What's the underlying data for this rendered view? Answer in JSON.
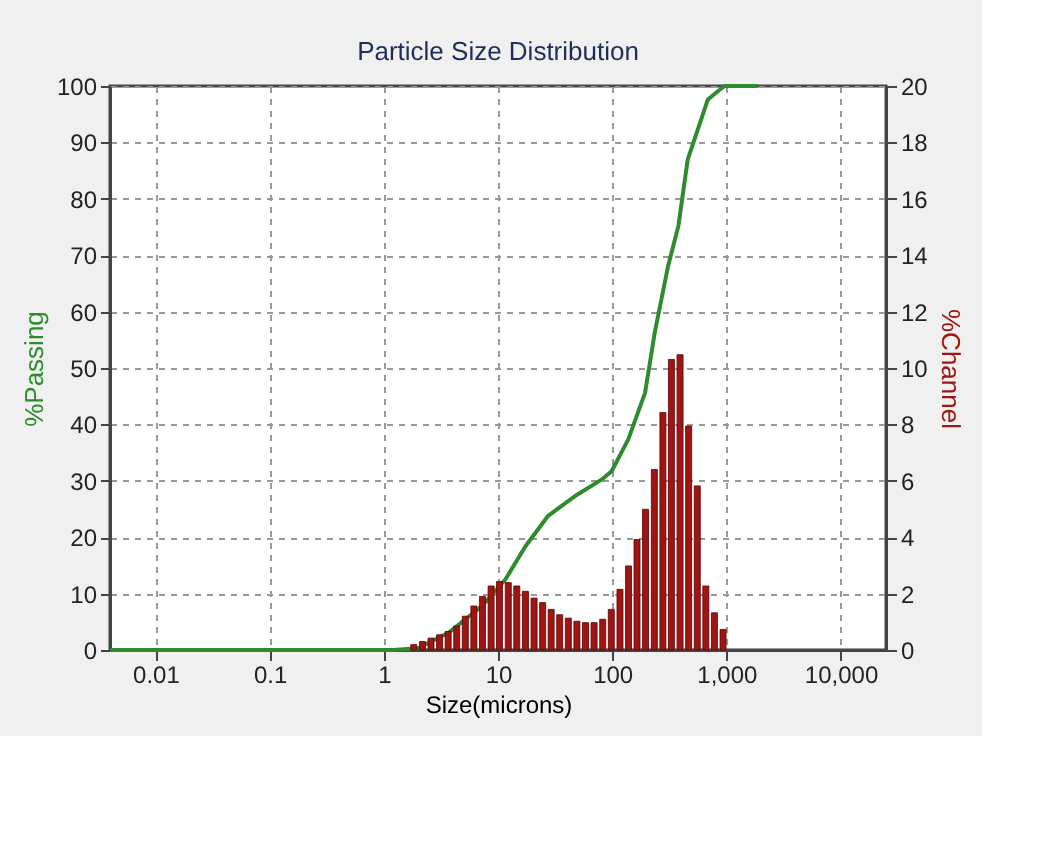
{
  "chart_data": {
    "type": "bar",
    "title": "Particle Size Distribution",
    "xlabel": "Size(microns)",
    "ylabel": "%Passing",
    "y2label": "%Channel",
    "log": "x",
    "grid": true,
    "marker": "none",
    "xlim": [
      0.004,
      25000
    ],
    "xticks": [
      0.01,
      0.1,
      1,
      10,
      100,
      {
        "value": 1000,
        "label": "1,000"
      },
      {
        "value": 10000,
        "label": "10,000"
      }
    ],
    "ylim": [
      0,
      100
    ],
    "yticks": [
      0,
      10,
      20,
      30,
      40,
      50,
      60,
      70,
      80,
      90,
      100
    ],
    "y2lim": [
      0,
      20
    ],
    "y2ticks": [
      0,
      2,
      4,
      6,
      8,
      10,
      12,
      14,
      16,
      18,
      20
    ],
    "series": [
      {
        "axis": "y2",
        "color": "#a01414",
        "x": [
          1.83,
          2.18,
          2.59,
          3.08,
          3.66,
          4.35,
          5.17,
          6.15,
          7.31,
          8.7,
          10.3,
          12.3,
          14.6,
          17.4,
          20.7,
          24.6,
          29.2,
          34.7,
          41.3,
          49.1,
          58.4,
          69.4,
          82.6,
          98.2,
          117,
          139,
          165,
          196,
          234,
          278,
          330,
          393,
          467,
          556,
          661,
          786,
          935
        ],
        "values": [
          0.19,
          0.3,
          0.42,
          0.54,
          0.66,
          0.85,
          1.2,
          1.56,
          1.9,
          2.27,
          2.43,
          2.39,
          2.27,
          2.08,
          1.84,
          1.68,
          1.44,
          1.25,
          1.13,
          1.02,
          0.97,
          0.97,
          1.09,
          1.44,
          2.15,
          2.98,
          3.92,
          4.99,
          6.4,
          8.42,
          10.3,
          10.47,
          7.94,
          5.82,
          2.27,
          1.32,
          0.73
        ]
      },
      {
        "type": "line",
        "axis": "y",
        "color": "#2e8b2e",
        "line_style": "solid",
        "x": [
          0.004,
          1.2,
          2,
          3.71,
          7.24,
          11.6,
          17.4,
          27.5,
          47.3,
          80.7,
          98.8,
          138,
          194,
          236,
          309,
          380,
          459,
          688,
          960,
          1860
        ],
        "values": [
          0,
          0,
          0.3,
          3.1,
          7.8,
          12.5,
          18.4,
          23.8,
          27.3,
          30.2,
          31.7,
          37.3,
          45.6,
          56.3,
          68.1,
          75.2,
          87,
          97.6,
          100,
          100
        ]
      }
    ]
  }
}
